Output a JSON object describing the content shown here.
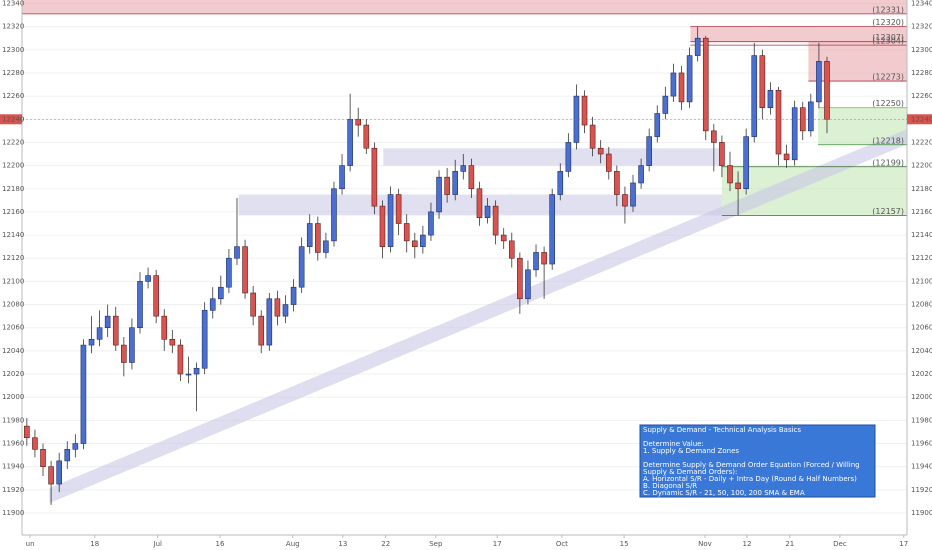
{
  "chart_data": {
    "type": "candlestick",
    "up_color": "#4a6fd1",
    "down_color": "#d9534f",
    "open": [
      11975,
      11965,
      11955,
      11940,
      11925,
      11945,
      11955,
      11960,
      12045,
      12050,
      12060,
      12070,
      12045,
      12030,
      12060,
      12100,
      12105,
      12070,
      12050,
      12045,
      12020,
      12020,
      12025,
      12075,
      12085,
      12095,
      12120,
      12130,
      12090,
      12070,
      12045,
      12085,
      12070,
      12080,
      12095,
      12130,
      12150,
      12125,
      12135,
      12180,
      12200,
      12240,
      12235,
      12215,
      12165,
      12130,
      12175,
      12150,
      12135,
      12130,
      12140,
      12160,
      12190,
      12175,
      12195,
      12200,
      12180,
      12155,
      12165,
      12140,
      12135,
      12120,
      12085,
      12110,
      12125,
      12115,
      12175,
      12195,
      12220,
      12260,
      12235,
      12215,
      12210,
      12195,
      12175,
      12165,
      12185,
      12200,
      12225,
      12245,
      12260,
      12280,
      12255,
      12295,
      12310,
      12230,
      12220,
      12200,
      12185,
      12180,
      12225,
      12295,
      12250,
      12265,
      12210,
      12205,
      12250,
      12230,
      12255,
      12290
    ],
    "high": [
      11982,
      11972,
      11960,
      11945,
      11952,
      11962,
      11968,
      12050,
      12070,
      12075,
      12080,
      12078,
      12052,
      12068,
      12108,
      12112,
      12110,
      12076,
      12058,
      12050,
      12035,
      12030,
      12082,
      12095,
      12105,
      12128,
      12172,
      12136,
      12096,
      12075,
      12090,
      12092,
      12088,
      12102,
      12138,
      12158,
      12156,
      12142,
      12186,
      12210,
      12262,
      12250,
      12240,
      12220,
      12170,
      12182,
      12180,
      12158,
      12142,
      12148,
      12168,
      12196,
      12198,
      12205,
      12210,
      12206,
      12186,
      12172,
      12170,
      12146,
      12142,
      12125,
      12118,
      12132,
      12130,
      12180,
      12202,
      12228,
      12270,
      12265,
      12242,
      12222,
      12216,
      12200,
      12182,
      12192,
      12206,
      12232,
      12252,
      12268,
      12288,
      12286,
      12302,
      12320,
      12312,
      12236,
      12226,
      12212,
      12195,
      12232,
      12306,
      12300,
      12272,
      12268,
      12218,
      12256,
      12255,
      12262,
      12306,
      12294
    ],
    "low": [
      11958,
      11948,
      11932,
      11907,
      11918,
      11938,
      11948,
      11955,
      12038,
      12044,
      12052,
      12040,
      12018,
      12024,
      12055,
      12094,
      12064,
      12040,
      12038,
      12014,
      12012,
      11988,
      12020,
      12068,
      12080,
      12090,
      12114,
      12085,
      12062,
      12038,
      12040,
      12062,
      12064,
      12074,
      12090,
      12124,
      12118,
      12120,
      12130,
      12175,
      12195,
      12225,
      12210,
      12158,
      12120,
      12125,
      12140,
      12125,
      12120,
      12124,
      12135,
      12154,
      12168,
      12170,
      12188,
      12172,
      12148,
      12150,
      12132,
      12128,
      12112,
      12072,
      12080,
      12104,
      12085,
      12110,
      12170,
      12190,
      12214,
      12228,
      12208,
      12202,
      12188,
      12165,
      12150,
      12160,
      12180,
      12195,
      12220,
      12240,
      12255,
      12248,
      12250,
      12290,
      12222,
      12195,
      12190,
      12178,
      12157,
      12175,
      12220,
      12240,
      12244,
      12200,
      12198,
      12200,
      12222,
      12225,
      12250,
      12228
    ],
    "close": [
      11965,
      11955,
      11940,
      11925,
      11945,
      11955,
      11960,
      12045,
      12050,
      12060,
      12070,
      12045,
      12030,
      12060,
      12100,
      12105,
      12070,
      12050,
      12045,
      12020,
      12020,
      12025,
      12075,
      12085,
      12095,
      12120,
      12130,
      12090,
      12070,
      12045,
      12085,
      12070,
      12080,
      12095,
      12130,
      12150,
      12125,
      12135,
      12180,
      12200,
      12240,
      12235,
      12215,
      12165,
      12130,
      12175,
      12150,
      12135,
      12130,
      12140,
      12160,
      12190,
      12175,
      12195,
      12200,
      12180,
      12155,
      12165,
      12140,
      12135,
      12120,
      12085,
      12110,
      12125,
      12115,
      12175,
      12195,
      12220,
      12260,
      12235,
      12215,
      12210,
      12195,
      12175,
      12165,
      12185,
      12200,
      12225,
      12245,
      12260,
      12280,
      12255,
      12295,
      12310,
      12230,
      12220,
      12200,
      12185,
      12180,
      12225,
      12295,
      12250,
      12265,
      12210,
      12205,
      12250,
      12230,
      12255,
      12290,
      12240
    ],
    "xlim": [
      -0.6,
      108.9
    ],
    "xticks": [
      {
        "value": 0.4,
        "label": "un"
      },
      {
        "value": 8.4,
        "label": "18"
      },
      {
        "value": 16.2,
        "label": "Jul"
      },
      {
        "value": 23.9,
        "label": "16"
      },
      {
        "value": 32.9,
        "label": "Aug"
      },
      {
        "value": 39.1,
        "label": "13"
      },
      {
        "value": 44.4,
        "label": "22"
      },
      {
        "value": 50.6,
        "label": "Sep"
      },
      {
        "value": 58.2,
        "label": "17"
      },
      {
        "value": 66.2,
        "label": "Oct"
      },
      {
        "value": 73.9,
        "label": "15"
      },
      {
        "value": 83.9,
        "label": "Nov"
      },
      {
        "value": 89.1,
        "label": "12"
      },
      {
        "value": 94.4,
        "label": "21"
      },
      {
        "value": 100.6,
        "label": "Dec"
      },
      {
        "value": 108.5,
        "label": "17"
      }
    ],
    "ylim": [
      11881,
      12343
    ],
    "yticks": [
      11900,
      11920,
      11940,
      11960,
      11980,
      12000,
      12020,
      12040,
      12060,
      12080,
      12100,
      12120,
      12140,
      12160,
      12180,
      12200,
      12220,
      12240,
      12260,
      12280,
      12300,
      12320,
      12340
    ],
    "last_price": 12240,
    "zones": [
      {
        "from": 12331,
        "to": 12343,
        "start": -0.6,
        "color": "#e8a0a8"
      },
      {
        "from": 12307,
        "to": 12320,
        "start": 82.1,
        "color": "#e8a0a8"
      },
      {
        "from": 12273,
        "to": 12307,
        "start": 96.7,
        "color": "#e8a0a8"
      },
      {
        "from": 12218,
        "to": 12250,
        "start": 97.9,
        "color": "#bfe3b0"
      },
      {
        "from": 12157,
        "to": 12199,
        "start": 86,
        "color": "#bfe3b0"
      },
      {
        "from": 12200,
        "to": 12215,
        "start": 44.1,
        "end": 86,
        "color": "#c9c6e6"
      },
      {
        "from": 12157,
        "to": 12175,
        "start": 26.2,
        "end": 86,
        "color": "#c9c6e6"
      }
    ],
    "levels": [
      {
        "value": 12331,
        "label": "(12331)",
        "color": "#b03040",
        "start": -0.6
      },
      {
        "value": 12320,
        "label": "(12320)",
        "color": "#b03040",
        "start": 82.1
      },
      {
        "value": 12307,
        "label": "(12307)",
        "color": "#b03040",
        "start": 82.1
      },
      {
        "value": 12304,
        "label": "(12304)",
        "color": "#b03040",
        "start": 82.1
      },
      {
        "value": 12273,
        "label": "(12273)",
        "color": "#b03040",
        "start": 96.7
      },
      {
        "value": 12250,
        "label": "(12250)",
        "color": "#7cbf62",
        "start": 97.9
      },
      {
        "value": 12218,
        "label": "(12218)",
        "color": "#3f8f3a",
        "start": 97.9
      },
      {
        "value": 12199,
        "label": "(12199)",
        "color": "#2e6b2a",
        "start": 86
      },
      {
        "value": 12157,
        "label": "(12157)",
        "color": "#2e6b2a",
        "start": 86
      }
    ],
    "trendline": {
      "x": [
        2.8,
        108.9
      ],
      "y": [
        11915,
        12225
      ],
      "width": 13,
      "color": "#c9c6e6"
    },
    "info_box": {
      "title": "Supply & Demand - Technical Analysis Basics",
      "sections": [
        [
          "Determine Value:",
          "1. Supply & Demand Zones"
        ],
        [
          "Determine Supply & Demand Order Equation (Forced / Willing",
          "Supply & Demand Orders):",
          "A. Horizontal S/R - Daily + Intra Day (Round & Half Numbers)",
          "B. Diagonal S/R",
          "C. Dynamic S/R - 21, 50, 100, 200 SMA & EMA"
        ]
      ]
    }
  }
}
